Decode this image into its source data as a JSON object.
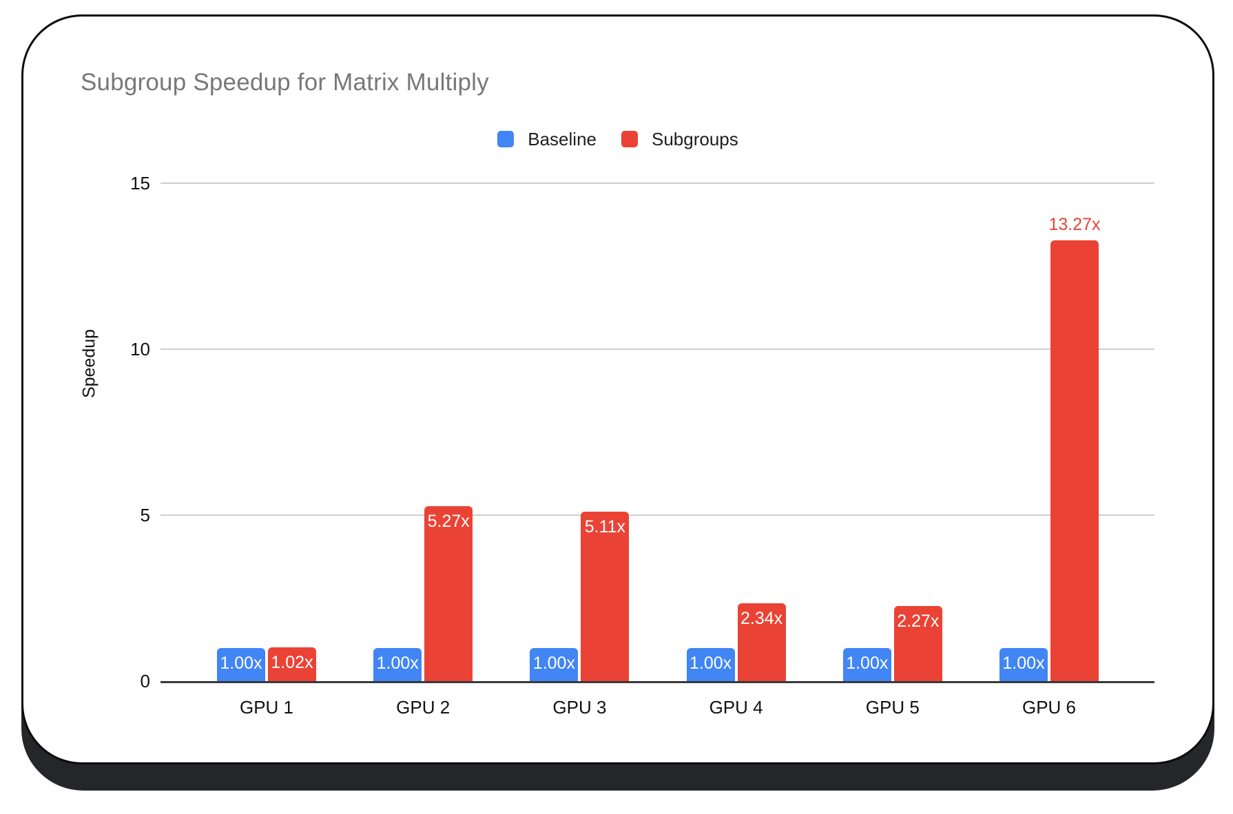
{
  "title": "Subgroup Speedup for Matrix Multiply",
  "legend": {
    "items": [
      {
        "label": "Baseline",
        "color": "#4285F4"
      },
      {
        "label": "Subgroups",
        "color": "#EA4335"
      }
    ]
  },
  "chart_data": {
    "type": "bar",
    "title": "Subgroup Speedup for Matrix Multiply",
    "xlabel": "",
    "ylabel": "Speedup",
    "categories": [
      "GPU 1",
      "GPU 2",
      "GPU 3",
      "GPU 4",
      "GPU 5",
      "GPU 6"
    ],
    "ylim": [
      0,
      15
    ],
    "y_ticks": [
      0,
      5,
      10,
      15
    ],
    "grid": true,
    "legend_position": "top",
    "series": [
      {
        "name": "Baseline",
        "color": "#4285F4",
        "values": [
          1.0,
          1.0,
          1.0,
          1.0,
          1.0,
          1.0
        ],
        "labels": [
          "1.00x",
          "1.00x",
          "1.00x",
          "1.00x",
          "1.00x",
          "1.00x"
        ],
        "label_placements": [
          "inside",
          "inside",
          "inside",
          "inside",
          "inside",
          "inside"
        ],
        "label_color_inside": "#ffffff"
      },
      {
        "name": "Subgroups",
        "color": "#EA4335",
        "values": [
          1.02,
          5.27,
          5.11,
          2.34,
          2.27,
          13.27
        ],
        "labels": [
          "1.02x",
          "5.27x",
          "5.11x",
          "2.34x",
          "2.27x",
          "13.27x"
        ],
        "label_placements": [
          "inside",
          "inside",
          "inside",
          "inside",
          "inside",
          "above"
        ],
        "label_color_inside": "#ffffff",
        "label_color_above": "#EA4335"
      }
    ]
  }
}
